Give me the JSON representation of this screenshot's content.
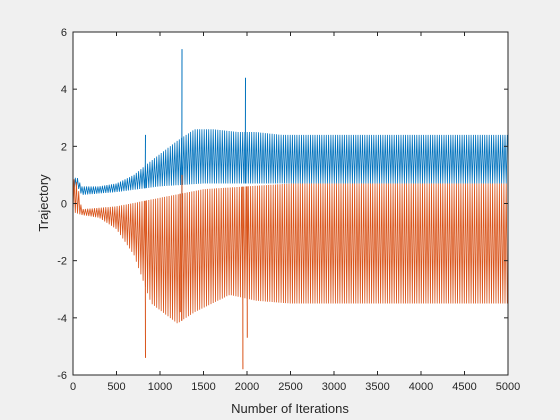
{
  "chart_data": {
    "type": "line",
    "title": "",
    "xlabel": "Number of Iterations",
    "ylabel": "Trajectory",
    "xlim": [
      0,
      5000
    ],
    "ylim": [
      -6,
      6
    ],
    "x_ticks": [
      0,
      500,
      1000,
      1500,
      2000,
      2500,
      3000,
      3500,
      4000,
      4500,
      5000
    ],
    "y_ticks": [
      -6,
      -4,
      -2,
      0,
      2,
      4,
      6
    ],
    "grid": false,
    "box": true,
    "series": [
      {
        "color": "#0072BD",
        "oscillation_upper_envelope": [
          [
            0,
            0.9
          ],
          [
            50,
            0.9
          ],
          [
            100,
            0.6
          ],
          [
            300,
            0.6
          ],
          [
            500,
            0.7
          ],
          [
            700,
            1.0
          ],
          [
            900,
            1.5
          ],
          [
            1200,
            2.2
          ],
          [
            1400,
            2.6
          ],
          [
            1600,
            2.6
          ],
          [
            1900,
            2.5
          ],
          [
            2100,
            2.5
          ],
          [
            2400,
            2.4
          ],
          [
            5000,
            2.4
          ]
        ],
        "oscillation_lower_envelope": [
          [
            0,
            0.4
          ],
          [
            50,
            0.6
          ],
          [
            100,
            0.3
          ],
          [
            500,
            0.4
          ],
          [
            1000,
            0.6
          ],
          [
            1500,
            0.7
          ],
          [
            2000,
            0.7
          ],
          [
            5000,
            0.7
          ]
        ],
        "spikes": [
          [
            830,
            2.4
          ],
          [
            1250,
            5.4
          ],
          [
            1980,
            4.4
          ]
        ],
        "dips": [
          [
            1250,
            -2.2
          ]
        ]
      },
      {
        "color": "#D95319",
        "oscillation_upper_envelope": [
          [
            0,
            0.9
          ],
          [
            50,
            0.7
          ],
          [
            100,
            -0.2
          ],
          [
            500,
            -0.1
          ],
          [
            1000,
            0.2
          ],
          [
            1500,
            0.5
          ],
          [
            2000,
            0.6
          ],
          [
            2500,
            0.7
          ],
          [
            5000,
            0.7
          ]
        ],
        "oscillation_lower_envelope": [
          [
            0,
            -0.3
          ],
          [
            100,
            -0.4
          ],
          [
            300,
            -0.5
          ],
          [
            500,
            -0.9
          ],
          [
            700,
            -1.8
          ],
          [
            900,
            -3.5
          ],
          [
            1200,
            -4.2
          ],
          [
            1400,
            -3.8
          ],
          [
            1800,
            -3.2
          ],
          [
            2100,
            -3.4
          ],
          [
            2500,
            -3.5
          ],
          [
            5000,
            -3.5
          ]
        ],
        "spikes": [
          [
            1250,
            1.0
          ]
        ],
        "dips": [
          [
            830,
            -5.4
          ],
          [
            1230,
            -3.8
          ],
          [
            1950,
            -5.8
          ],
          [
            2000,
            -4.7
          ]
        ]
      }
    ]
  }
}
